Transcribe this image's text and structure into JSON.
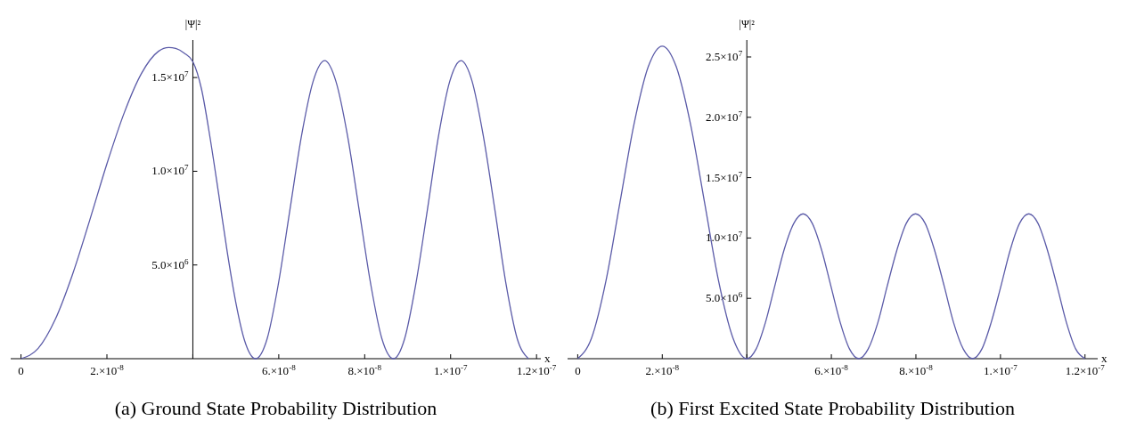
{
  "chart_data": [
    {
      "type": "line",
      "title": "(a) Ground State Probability Distribution",
      "xlabel": "x",
      "ylabel": "|Ψ|²",
      "xlim": [
        -2.4e-09,
        1.21e-07
      ],
      "ylim": [
        0,
        17000000.0
      ],
      "xticks": [
        0,
        {
          "value": 2e-08,
          "label": "2.×10$^{-8}$"
        },
        {
          "value": 4e-08,
          "label": null
        },
        {
          "value": 6e-08,
          "label": "6.×10$^{-8}$"
        },
        {
          "value": 8e-08,
          "label": "8.×10$^{-8}$"
        },
        {
          "value": 1e-07,
          "label": "1.×10$^{-7}$"
        },
        {
          "value": 1.2e-07,
          "label": "1.2×10$^{-7}$"
        }
      ],
      "yticks": [
        {
          "value": 5000000.0,
          "label": "5.0×10$^{6}$"
        },
        {
          "value": 10000000.0,
          "label": "1.0×10$^{7}$"
        },
        {
          "value": 15000000.0,
          "label": "1.5×10$^{7}$"
        }
      ],
      "marker": "none",
      "line_style": "solid",
      "series": [
        {
          "color": "#5b5ba8",
          "x": [
            0,
            4e-09,
            8e-09,
            1.2e-08,
            1.6e-08,
            2e-08,
            2.4e-08,
            2.8e-08,
            3.2e-08,
            3.44e-08,
            3.6e-08,
            3.8e-08,
            4e-08,
            4.2e-08,
            4.4e-08,
            4.6e-08,
            4.8e-08,
            5e-08,
            5.2e-08,
            5.46e-08,
            5.73e-08,
            5.99e-08,
            6.26e-08,
            6.53e-08,
            6.8e-08,
            7.07e-08,
            7.33e-08,
            7.6e-08,
            7.87e-08,
            8.14e-08,
            8.4e-08,
            8.67e-08,
            8.93e-08,
            9.19e-08,
            9.46e-08,
            9.72e-08,
            9.98e-08,
            1.024e-07,
            1.05e-07,
            1.076e-07,
            1.103e-07,
            1.129e-07,
            1.155e-07,
            1.181e-07
          ],
          "values": [
            0,
            550000.0,
            2110000.0,
            4500000.0,
            7390000.0,
            10400000.0,
            13100000.0,
            15200000.0,
            16400000.0,
            16600000.0,
            16550000.0,
            16300000.0,
            15850000.0,
            14400000.0,
            11800000.0,
            8800000.0,
            5700000.0,
            3000000.0,
            1000000.0,
            0,
            1070000.0,
            3980000.0,
            7950000.0,
            11900000.0,
            14800000.0,
            15900000.0,
            14800000.0,
            11900000.0,
            7950000.0,
            3980000.0,
            1070000.0,
            0,
            1070000.0,
            3980000.0,
            7950000.0,
            11900000.0,
            14800000.0,
            15900000.0,
            14800000.0,
            11900000.0,
            7950000.0,
            3980000.0,
            1070000.0,
            0
          ]
        }
      ]
    },
    {
      "type": "line",
      "title": "(b) First Excited State Probability Distribution",
      "xlabel": "x",
      "ylabel": "|Ψ|²",
      "xlim": [
        -2.4e-09,
        1.23e-07
      ],
      "ylim": [
        0,
        26400000.0
      ],
      "xticks": [
        0,
        {
          "value": 2e-08,
          "label": "2.×10$^{-8}$"
        },
        {
          "value": 4e-08,
          "label": null
        },
        {
          "value": 6e-08,
          "label": "6.×10$^{-8}$"
        },
        {
          "value": 8e-08,
          "label": "8.×10$^{-8}$"
        },
        {
          "value": 1e-07,
          "label": "1.×10$^{-7}$"
        },
        {
          "value": 1.2e-07,
          "label": "1.2×10$^{-7}$"
        }
      ],
      "yticks": [
        {
          "value": 5000000.0,
          "label": "5.0×10$^{6}$"
        },
        {
          "value": 10000000.0,
          "label": "1.0×10$^{7}$"
        },
        {
          "value": 15000000.0,
          "label": "1.5×10$^{7}$"
        },
        {
          "value": 20000000.0,
          "label": "2.0×10$^{7}$"
        },
        {
          "value": 25000000.0,
          "label": "2.5×10$^{7}$"
        }
      ],
      "marker": "none",
      "line_style": "solid",
      "series": [
        {
          "color": "#5b5ba8",
          "x": [
            0,
            3.3e-09,
            6.7e-09,
            1e-08,
            1.33e-08,
            1.67e-08,
            2e-08,
            2.33e-08,
            2.67e-08,
            3e-08,
            3.33e-08,
            3.67e-08,
            4e-08,
            4.22e-08,
            4.44e-08,
            4.66e-08,
            4.88e-08,
            5.11e-08,
            5.33e-08,
            5.55e-08,
            5.77e-08,
            5.99e-08,
            6.21e-08,
            6.43e-08,
            6.65e-08,
            6.87e-08,
            7.1e-08,
            7.32e-08,
            7.55e-08,
            7.77e-08,
            7.99e-08,
            8.22e-08,
            8.44e-08,
            8.67e-08,
            8.89e-08,
            9.12e-08,
            9.34e-08,
            9.56e-08,
            9.78e-08,
            1.001e-07,
            1.023e-07,
            1.045e-07,
            1.067e-07,
            1.089e-07,
            1.111e-07,
            1.134e-07,
            1.156e-07,
            1.178e-07,
            1.2e-07
          ],
          "values": [
            0,
            1740000.0,
            6480000.0,
            12950000.0,
            19400000.0,
            24200000.0,
            25900000.0,
            24200000.0,
            19400000.0,
            12950000.0,
            6480000.0,
            1740000.0,
            0,
            800000.0,
            3000000.0,
            6000000.0,
            9000000.0,
            11200000.0,
            12000000.0,
            11200000.0,
            9000000.0,
            6000000.0,
            3000000.0,
            800000.0,
            0,
            800000.0,
            3000000.0,
            6000000.0,
            9000000.0,
            11200000.0,
            12000000.0,
            11200000.0,
            9000000.0,
            6000000.0,
            3000000.0,
            800000.0,
            0,
            800000.0,
            3000000.0,
            6000000.0,
            9000000.0,
            11200000.0,
            12000000.0,
            11200000.0,
            9000000.0,
            6000000.0,
            3000000.0,
            800000.0,
            0
          ]
        }
      ]
    }
  ]
}
